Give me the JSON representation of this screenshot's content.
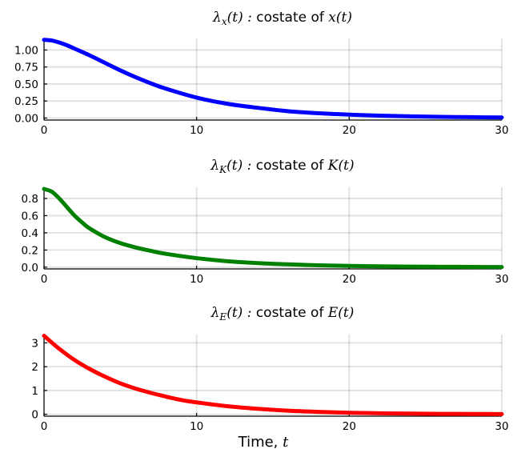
{
  "chart_data": [
    {
      "type": "line",
      "title": {
        "prefix": "λ",
        "subscript": "x",
        "suffix": "(t) :  ",
        "text": "costate of ",
        "math": "x(t)"
      },
      "xlabel": "",
      "ylabel": "",
      "xlim": [
        0,
        30
      ],
      "ylim": [
        -0.03,
        1.17
      ],
      "xticks": [
        0,
        10,
        20,
        30
      ],
      "yticks": [
        0.0,
        0.25,
        0.5,
        0.75,
        1.0
      ],
      "ytick_labels": [
        "0.00",
        "0.25",
        "0.50",
        "0.75",
        "1.00"
      ],
      "grid": true,
      "series": [
        {
          "color": "#0000ff",
          "x": [
            0,
            0.5,
            1,
            1.5,
            2,
            3,
            4,
            5,
            6,
            7,
            8,
            10,
            12,
            14,
            16,
            18,
            20,
            22,
            24,
            26,
            28,
            30
          ],
          "y": [
            1.15,
            1.14,
            1.11,
            1.07,
            1.02,
            0.92,
            0.81,
            0.7,
            0.6,
            0.51,
            0.43,
            0.3,
            0.21,
            0.15,
            0.1,
            0.07,
            0.05,
            0.035,
            0.025,
            0.017,
            0.012,
            0.008
          ]
        }
      ]
    },
    {
      "type": "line",
      "title": {
        "prefix": "λ",
        "subscript": "K",
        "suffix": "(t) :  ",
        "text": "costate of ",
        "math": "K(t)"
      },
      "xlabel": "",
      "ylabel": "",
      "xlim": [
        0,
        30
      ],
      "ylim": [
        -0.02,
        0.93
      ],
      "xticks": [
        0,
        10,
        20,
        30
      ],
      "yticks": [
        0.0,
        0.2,
        0.4,
        0.6,
        0.8
      ],
      "ytick_labels": [
        "0.0",
        "0.2",
        "0.4",
        "0.6",
        "0.8"
      ],
      "grid": true,
      "series": [
        {
          "color": "#008000",
          "x": [
            0,
            0.5,
            1,
            1.5,
            2,
            2.5,
            3,
            4,
            5,
            6,
            7,
            8,
            10,
            12,
            14,
            16,
            18,
            20,
            22,
            24,
            26,
            28,
            30
          ],
          "y": [
            0.91,
            0.88,
            0.8,
            0.7,
            0.6,
            0.52,
            0.45,
            0.35,
            0.28,
            0.23,
            0.19,
            0.155,
            0.105,
            0.07,
            0.048,
            0.033,
            0.022,
            0.015,
            0.01,
            0.007,
            0.005,
            0.003,
            0.002
          ]
        }
      ]
    },
    {
      "type": "line",
      "title": {
        "prefix": "λ",
        "subscript": "E",
        "suffix": "(t) :  ",
        "text": "costate of ",
        "math": "E(t)"
      },
      "xlabel": "Time, ",
      "xlabel_math": "t",
      "ylabel": "",
      "xlim": [
        0,
        30
      ],
      "ylim": [
        -0.08,
        3.35
      ],
      "xticks": [
        0,
        10,
        20,
        30
      ],
      "yticks": [
        0,
        1,
        2,
        3
      ],
      "ytick_labels": [
        "0",
        "1",
        "2",
        "3"
      ],
      "grid": true,
      "series": [
        {
          "color": "#ff0000",
          "x": [
            0,
            1,
            2,
            3,
            4,
            5,
            6,
            7,
            8,
            9,
            10,
            12,
            14,
            16,
            18,
            20,
            22,
            24,
            26,
            28,
            30
          ],
          "y": [
            3.3,
            2.75,
            2.28,
            1.9,
            1.58,
            1.3,
            1.08,
            0.9,
            0.74,
            0.6,
            0.5,
            0.34,
            0.23,
            0.15,
            0.1,
            0.065,
            0.043,
            0.028,
            0.018,
            0.012,
            0.008
          ]
        }
      ]
    }
  ]
}
